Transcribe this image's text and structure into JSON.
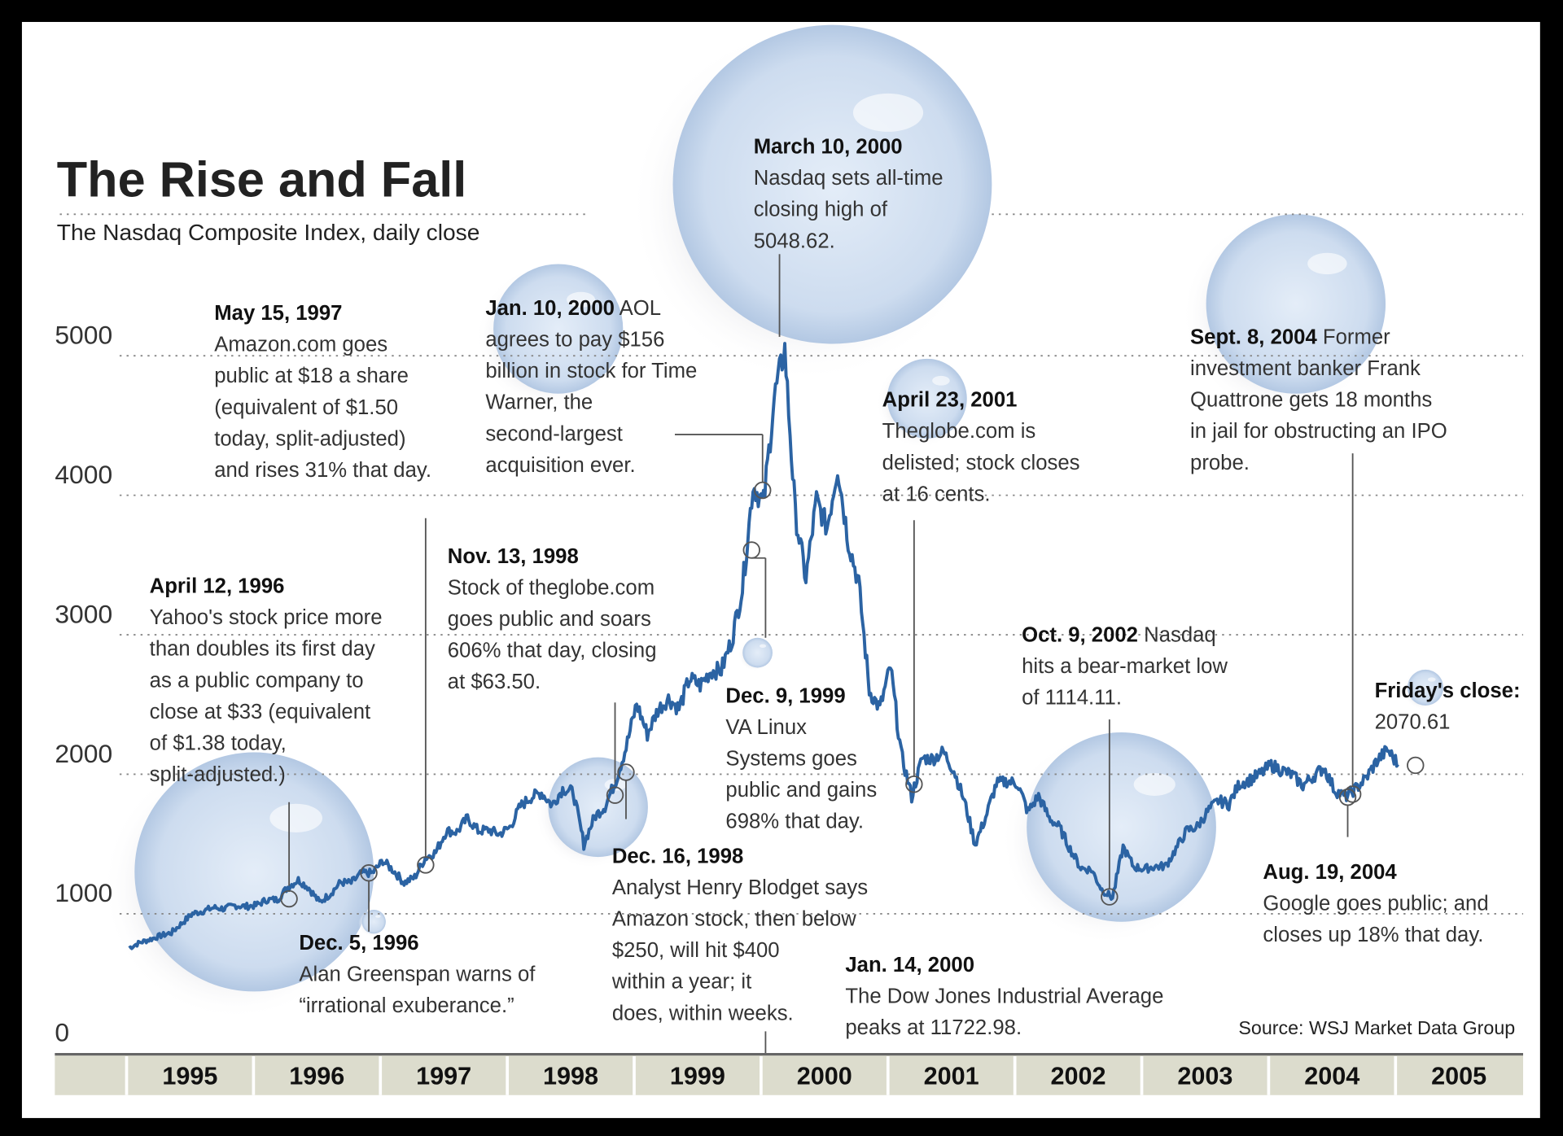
{
  "chart_data": {
    "type": "line",
    "title": "The Rise and Fall",
    "subtitle": "The Nasdaq Composite Index, daily close",
    "source": "Source: WSJ Market Data Group",
    "ylim": [
      0,
      5000
    ],
    "yticks": [
      "0",
      "1000",
      "2000",
      "3000",
      "4000",
      "5000"
    ],
    "ytick_values": [
      0,
      1000,
      2000,
      3000,
      4000,
      5000
    ],
    "xticks": [
      "1995",
      "1996",
      "1997",
      "1998",
      "1999",
      "2000",
      "2001",
      "2002",
      "2003",
      "2004",
      "2005"
    ],
    "grid": true,
    "line_color": "#2b63a3",
    "bubble_color": "#c9d9ee",
    "series": [
      {
        "x_start": "1995-01",
        "interval": "month",
        "values": [
          755,
          793,
          817,
          843,
          864,
          933,
          1001,
          1020,
          1044,
          1036,
          1059,
          1052,
          1060,
          1100,
          1101,
          1190,
          1243,
          1185,
          1081,
          1141,
          1226,
          1221,
          1293,
          1291,
          1380,
          1309,
          1222,
          1261,
          1400,
          1442,
          1594,
          1587,
          1686,
          1594,
          1601,
          1570,
          1619,
          1771,
          1835,
          1868,
          1779,
          1895,
          1872,
          1499,
          1694,
          1771,
          1950,
          2193,
          2506,
          2288,
          2461,
          2543,
          2471,
          2686,
          2638,
          2739,
          2746,
          2966,
          3336,
          4069,
          3940,
          4697,
          5048,
          3861,
          3401,
          3966,
          3767,
          4206,
          3673,
          3370,
          2598,
          2471,
          2773,
          2152,
          1840,
          2116,
          2110,
          2161,
          2027,
          1805,
          1499,
          1690,
          1931,
          1950,
          1934,
          1731,
          1845,
          1688,
          1616,
          1463,
          1328,
          1315,
          1172,
          1114,
          1479,
          1336,
          1321,
          1338,
          1341,
          1464,
          1596,
          1623,
          1735,
          1810,
          1787,
          1932,
          1960,
          2003,
          2066,
          2030,
          1994,
          1920,
          1987,
          2048,
          1887,
          1838,
          1897,
          1975,
          2097,
          2175,
          2070
        ]
      }
    ],
    "annotations": [
      {
        "date": "April 12, 1996",
        "inline": "",
        "lines": [
          "Yahoo's stock price more",
          "than doubles its first day",
          "as a public company to",
          "close at $33 (equivalent",
          "of $1.38 today,",
          "split-adjusted.)"
        ],
        "value_date": "1996-04"
      },
      {
        "date": "May 15, 1997",
        "inline": "",
        "lines": [
          "Amazon.com goes",
          "public at $18 a share",
          "(equivalent of $1.50",
          "today, split-adjusted)",
          "and rises 31% that day."
        ],
        "value_date": "1997-05"
      },
      {
        "date": "Dec. 5, 1996",
        "inline": "",
        "lines": [
          "Alan Greenspan warns of",
          "“irrational exuberance.”"
        ],
        "value_date": "1996-12"
      },
      {
        "date": "Jan. 10, 2000",
        "inline": "  AOL",
        "lines": [
          "agrees to pay $156",
          "billion in stock for Time",
          "Warner, the",
          "second-largest",
          "acquisition ever."
        ],
        "value_date": "2000-01"
      },
      {
        "date": "Nov. 13, 1998",
        "inline": "",
        "lines": [
          "Stock of theglobe.com",
          "goes public and soars",
          "606% that day, closing",
          "at $63.50."
        ],
        "value_date": "1998-11"
      },
      {
        "date": "Dec. 16, 1998",
        "inline": "",
        "lines": [
          "Analyst Henry Blodget says",
          "Amazon stock, then below",
          "$250, will hit $400",
          "within a year; it",
          "does, within weeks."
        ],
        "value_date": "1998-12"
      },
      {
        "date": "Dec. 9, 1999",
        "inline": "",
        "lines": [
          "VA Linux",
          "Systems  goes",
          "public and gains",
          "698% that day."
        ],
        "value_date": "1999-12"
      },
      {
        "date": "March 10, 2000",
        "inline": "",
        "lines": [
          "Nasdaq sets all-time",
          "closing high of",
          "5048.62."
        ],
        "value": 5048.62
      },
      {
        "date": "Jan. 14, 2000",
        "inline": "",
        "lines": [
          "The Dow Jones Industrial Average",
          "peaks at 11722.98."
        ]
      },
      {
        "date": "April 23, 2001",
        "inline": "",
        "lines": [
          "Theglobe.com is",
          "delisted; stock closes",
          "at 16 cents."
        ],
        "value_date": "2001-04"
      },
      {
        "date": "Oct. 9, 2002",
        "inline": "  Nasdaq",
        "lines": [
          "hits a bear-market low",
          "of 1114.11."
        ],
        "value": 1114.11
      },
      {
        "date": "Sept. 8, 2004",
        "inline": " Former",
        "lines": [
          "investment banker Frank",
          "Quattrone gets 18 months",
          "in jail for obstructing an IPO",
          "probe."
        ],
        "value_date": "2004-09"
      },
      {
        "date": "Aug. 19, 2004",
        "inline": "",
        "lines": [
          "Google goes public; and",
          "closes up 18% that day."
        ],
        "value_date": "2004-08"
      },
      {
        "date": "Friday's close:",
        "inline": "",
        "lines": [
          "2070.61"
        ],
        "value": 2070.61
      }
    ]
  }
}
